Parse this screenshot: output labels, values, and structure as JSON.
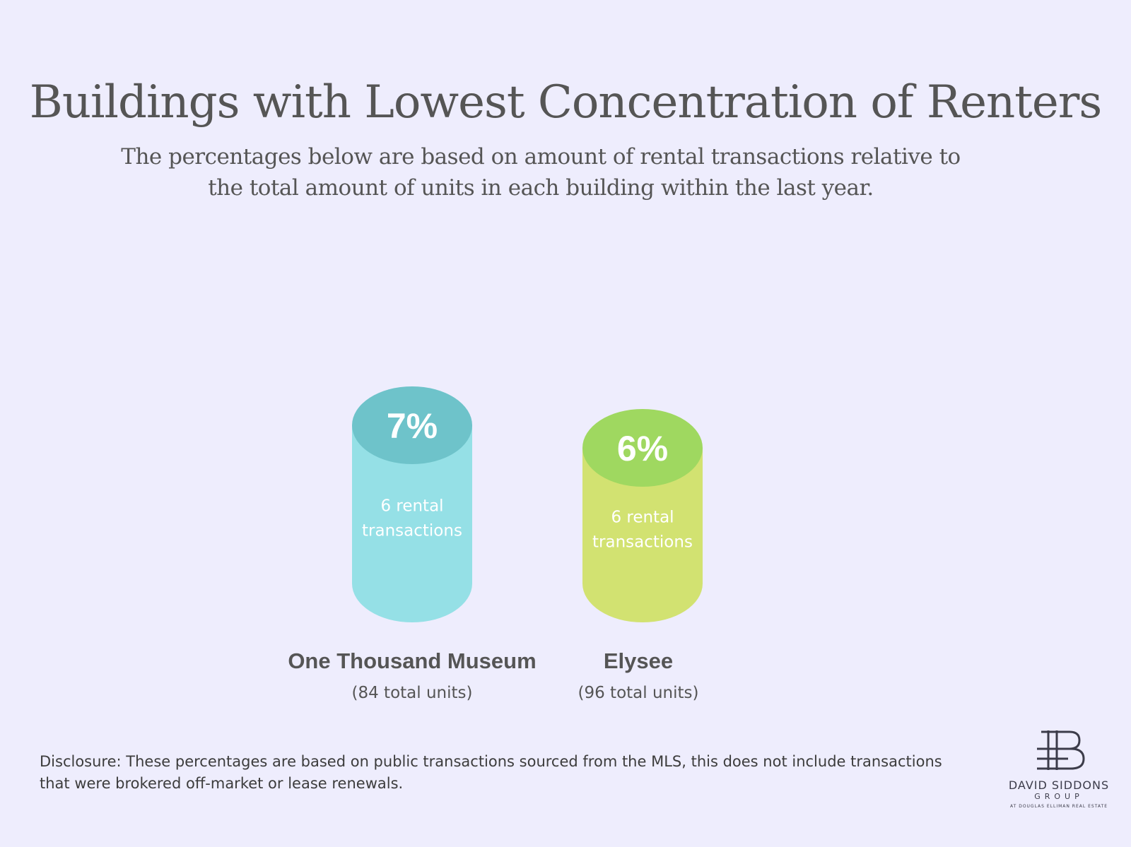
{
  "title": "Buildings with Lowest Concentration of Renters",
  "subtitle": "The percentages below are based on amount of rental transactions relative to the total amount of units in each building within the last year.",
  "chart_data": {
    "type": "bar",
    "categories": [
      "One Thousand Museum",
      "Elysee"
    ],
    "units_labels": [
      "(84 total units)",
      "(96 total units)"
    ],
    "values": [
      7,
      6
    ],
    "value_labels": [
      "7%",
      "6%"
    ],
    "inner_labels": [
      [
        "6 rental",
        "transactions"
      ],
      [
        "6 rental",
        "transactions"
      ]
    ],
    "body_colors": [
      "#95e0e6",
      "#d2e271"
    ],
    "top_colors": [
      "#6ec3ca",
      "#9fd860"
    ]
  },
  "disclosure": "Disclosure: These percentages are based on public transactions sourced from the MLS, this does not include transactions that were brokered off-market or lease renewals.",
  "logo": {
    "icon": "ds-monogram-icon",
    "name": "DAVID SIDDONS",
    "group": "GROUP",
    "sub": "AT DOUGLAS ELLIMAN REAL ESTATE"
  }
}
